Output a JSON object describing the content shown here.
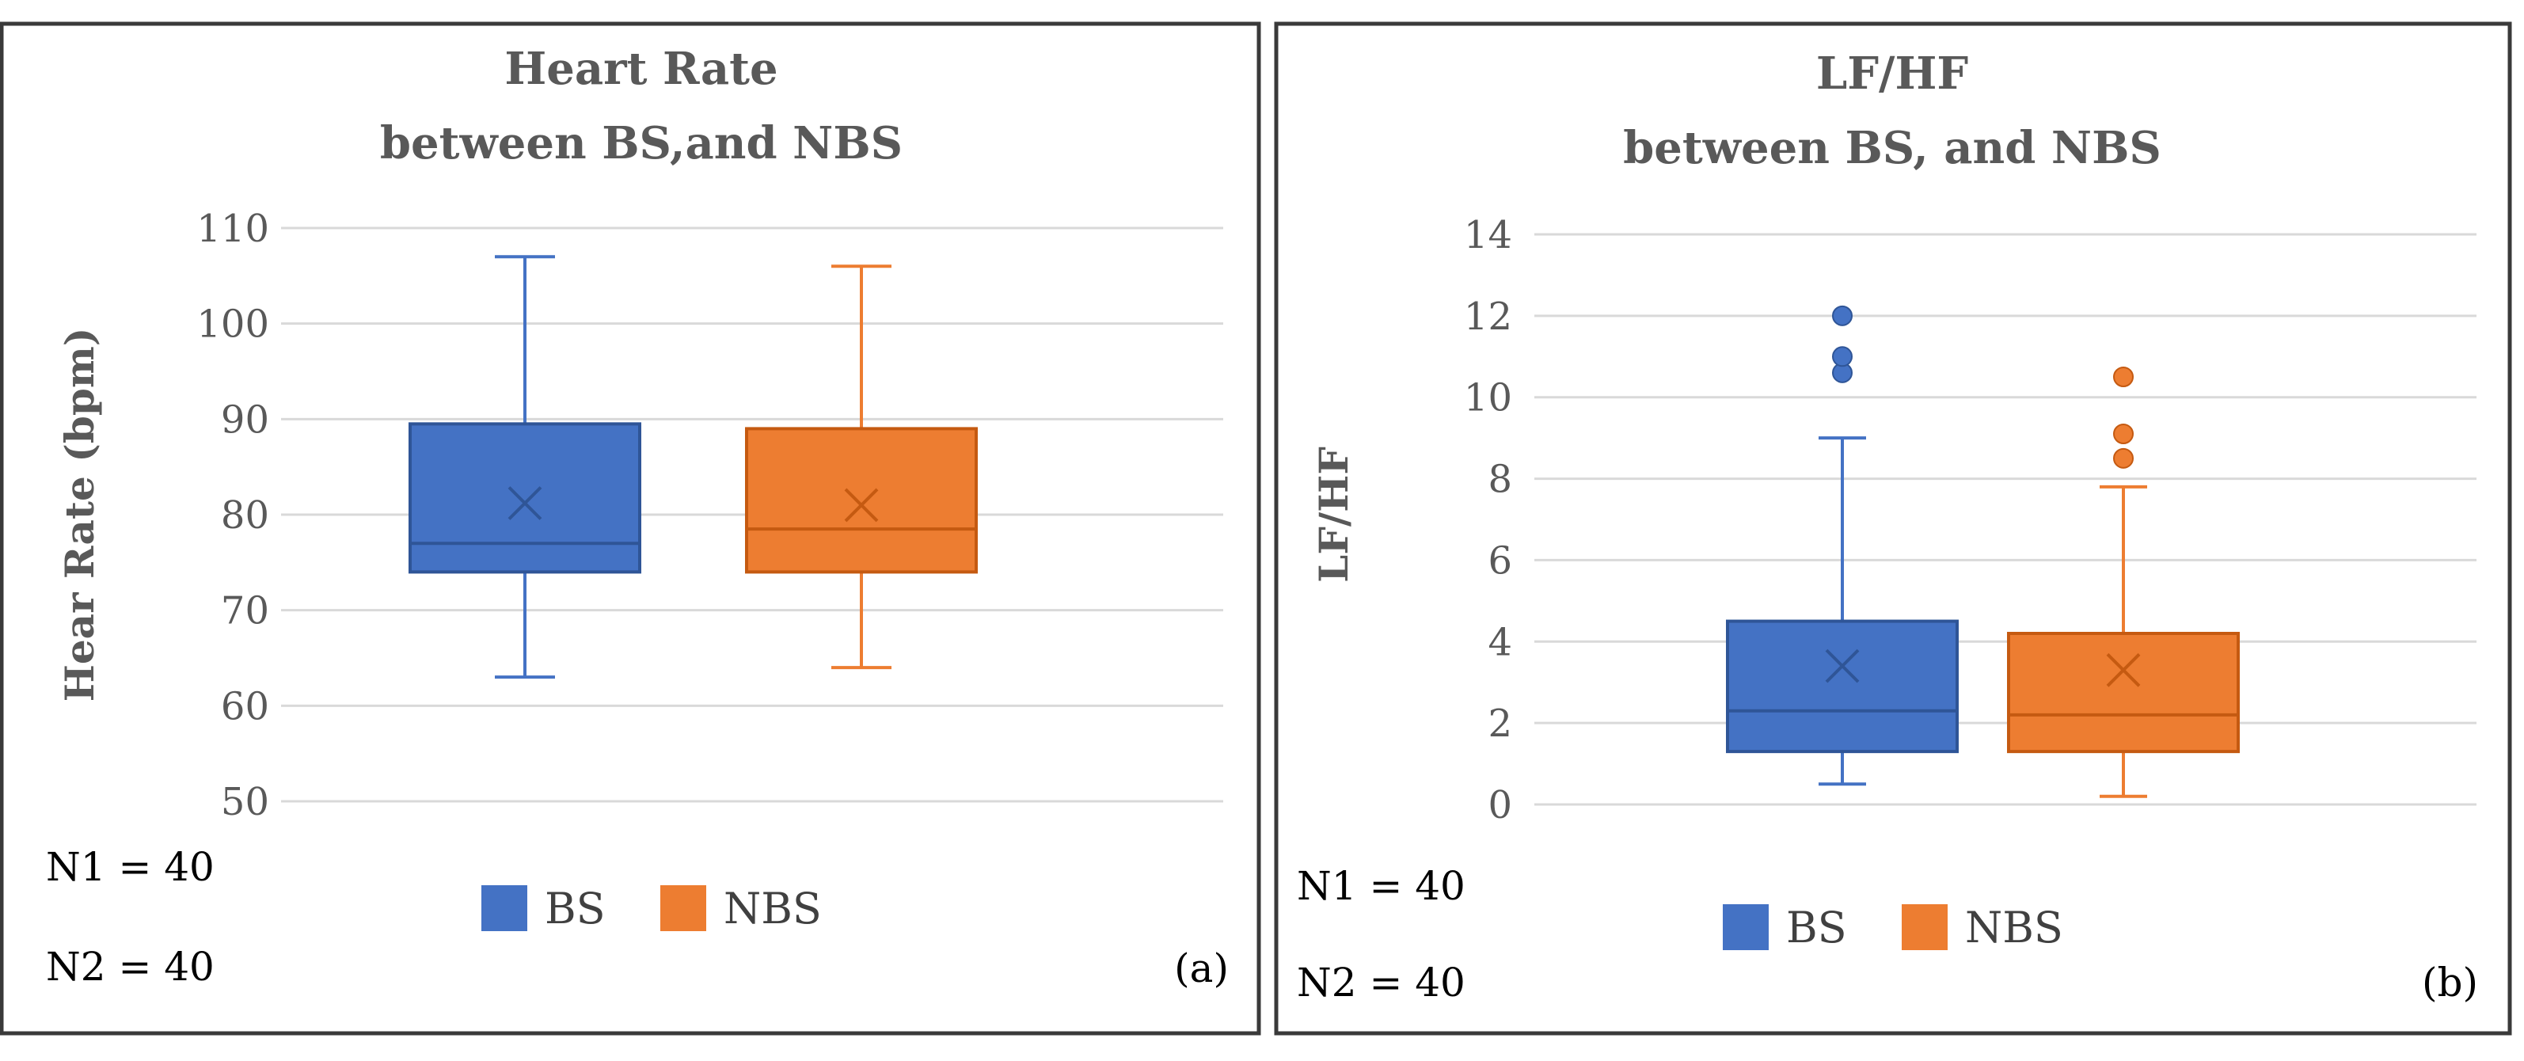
{
  "chart_data": [
    {
      "type": "box",
      "title": [
        "Heart Rate",
        "between BS,and NBS"
      ],
      "ylabel": "Hear Rate (bpm)",
      "ylim": [
        50,
        110
      ],
      "yticks": [
        50,
        60,
        70,
        80,
        90,
        100,
        110
      ],
      "legend": [
        "BS",
        "NBS"
      ],
      "notes": [
        "N1 = 40",
        "N2 = 40"
      ],
      "panel_label": "(a)",
      "series": [
        {
          "name": "BS",
          "color": "#4472c4",
          "min": 63,
          "q1": 74,
          "median": 77,
          "q3": 89.5,
          "max": 107,
          "mean": 81.2,
          "outliers": []
        },
        {
          "name": "NBS",
          "color": "#ed7d31",
          "min": 64,
          "q1": 74,
          "median": 78.5,
          "q3": 89,
          "max": 106,
          "mean": 81,
          "outliers": []
        }
      ]
    },
    {
      "type": "box",
      "title": [
        "LF/HF",
        "between BS, and NBS"
      ],
      "ylabel": "LF/HF",
      "ylim": [
        0,
        14
      ],
      "yticks": [
        0,
        2,
        4,
        6,
        8,
        10,
        12,
        14
      ],
      "legend": [
        "BS",
        "NBS"
      ],
      "notes": [
        "N1 = 40",
        "N2 = 40"
      ],
      "panel_label": "(b)",
      "series": [
        {
          "name": "BS",
          "color": "#4472c4",
          "min": 0.5,
          "q1": 1.3,
          "median": 2.3,
          "q3": 4.5,
          "max": 9,
          "mean": 3.4,
          "outliers": [
            10.6,
            11,
            12
          ]
        },
        {
          "name": "NBS",
          "color": "#ed7d31",
          "min": 0.2,
          "q1": 1.3,
          "median": 2.2,
          "q3": 4.2,
          "max": 7.8,
          "mean": 3.3,
          "outliers": [
            8.5,
            9.1,
            10.5
          ]
        }
      ]
    }
  ]
}
